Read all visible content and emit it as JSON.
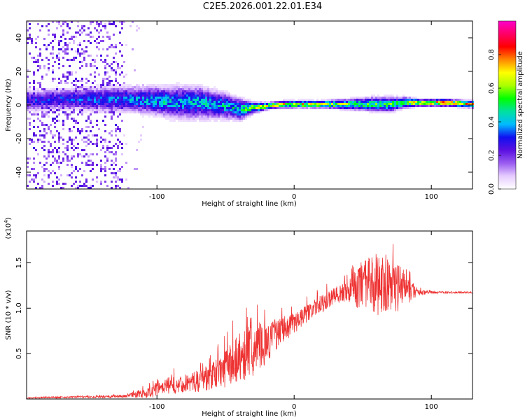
{
  "title": "C2E5.2026.001.22.01.E34",
  "colors": {
    "snr_line": "#ee3333",
    "colormap": [
      "#ffffff",
      "#e6ccff",
      "#9a5cf0",
      "#5a10e0",
      "#1010f0",
      "#00bbff",
      "#00e0a0",
      "#00ff00",
      "#aaff00",
      "#ffff00",
      "#ff8800",
      "#ff0000",
      "#ff0066",
      "#ff00cc"
    ]
  },
  "chart_data": [
    {
      "type": "heatmap",
      "name": "spectrogram",
      "xlabel": "Height of straight line (km)",
      "ylabel": "Frequency (Hz)",
      "xlim": [
        -195,
        130
      ],
      "ylim": [
        -50,
        50
      ],
      "xticks": [
        -100,
        0,
        100
      ],
      "xtick_labels": [
        "-100",
        "0",
        "100"
      ],
      "yticks": [
        -40,
        -20,
        0,
        20,
        40
      ],
      "ytick_labels": [
        "-40",
        "-20",
        "0",
        "20",
        "40"
      ],
      "colorbar": {
        "label": "Normalized spectral amplitude",
        "range": [
          0,
          1
        ],
        "ticks": [
          0.0,
          0.2,
          0.4,
          0.6,
          0.8
        ],
        "tick_labels": [
          "0.0",
          "0.2",
          "0.4",
          "0.6",
          "0.8"
        ]
      },
      "band": {
        "x": [
          -195,
          -175,
          -160,
          -140,
          -120,
          -100,
          -85,
          -70,
          -60,
          -50,
          -40,
          -30,
          -20,
          -10,
          0,
          20,
          40,
          55,
          70,
          80,
          90,
          110,
          130
        ],
        "center_hz": [
          3,
          4,
          4,
          4,
          4,
          3,
          2,
          2,
          1,
          0,
          -2,
          -1,
          0,
          1,
          1,
          1,
          1,
          1,
          1,
          2,
          2,
          2,
          1
        ],
        "half_width_hz": [
          6,
          6,
          6,
          7,
          7,
          8,
          9,
          9,
          8,
          7,
          6,
          3,
          2,
          2,
          2,
          2,
          3,
          4,
          4,
          3,
          2,
          2,
          2
        ],
        "peak_amplitude": [
          0.35,
          0.38,
          0.4,
          0.42,
          0.45,
          0.5,
          0.5,
          0.5,
          0.5,
          0.52,
          0.55,
          0.75,
          0.85,
          0.85,
          0.85,
          0.85,
          0.7,
          0.6,
          0.65,
          0.7,
          0.9,
          0.95,
          0.9
        ]
      },
      "noise_region_x": [
        -195,
        -125
      ]
    },
    {
      "type": "line",
      "name": "snr",
      "xlabel": "Height of straight line (km)",
      "ylabel": "SNR (10 * v/v)",
      "y_multiplier": "(x10",
      "y_multiplier_exp": "4",
      "y_multiplier_close": ")",
      "xlim": [
        -195,
        130
      ],
      "ylim": [
        0,
        1.85
      ],
      "xticks": [
        -100,
        0,
        100
      ],
      "xtick_labels": [
        "-100",
        "0",
        "100"
      ],
      "yticks": [
        0.5,
        1.0,
        1.5
      ],
      "ytick_labels": [
        "0.5",
        "1.0",
        "1.5"
      ],
      "series": [
        {
          "name": "SNR",
          "x": [
            -195,
            -175,
            -150,
            -125,
            -110,
            -100,
            -90,
            -80,
            -70,
            -60,
            -50,
            -40,
            -30,
            -20,
            -10,
            0,
            10,
            20,
            30,
            40,
            50,
            60,
            70,
            80,
            85,
            90,
            100,
            110,
            130
          ],
          "baseline": [
            0.01,
            0.015,
            0.02,
            0.025,
            0.04,
            0.08,
            0.12,
            0.14,
            0.16,
            0.2,
            0.28,
            0.38,
            0.45,
            0.55,
            0.7,
            0.8,
            0.92,
            1.02,
            1.1,
            1.15,
            1.15,
            1.16,
            1.14,
            1.14,
            1.16,
            1.16,
            1.17,
            1.17,
            1.17
          ],
          "noise_amplitude": [
            0.005,
            0.008,
            0.01,
            0.015,
            0.05,
            0.08,
            0.1,
            0.1,
            0.12,
            0.15,
            0.22,
            0.3,
            0.28,
            0.22,
            0.15,
            0.12,
            0.1,
            0.1,
            0.1,
            0.12,
            0.28,
            0.35,
            0.3,
            0.25,
            0.12,
            0.04,
            0.015,
            0.01,
            0.01
          ]
        }
      ]
    }
  ]
}
